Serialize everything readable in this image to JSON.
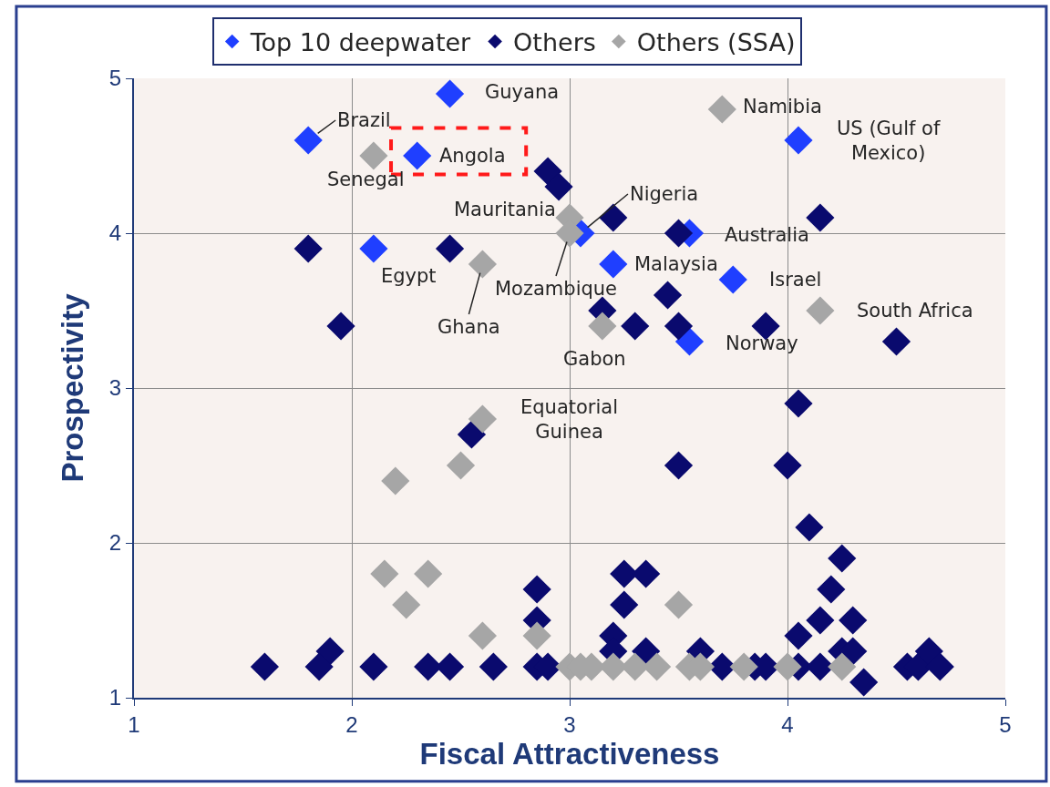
{
  "chart_data": {
    "type": "scatter",
    "xlabel": "Fiscal Attractiveness",
    "ylabel": "Prospectivity",
    "xlim": [
      1,
      5
    ],
    "ylim": [
      1,
      5
    ],
    "xticks": [
      1,
      2,
      3,
      4,
      5
    ],
    "yticks": [
      1,
      2,
      3,
      4,
      5
    ],
    "grid": true,
    "legend": "top",
    "marker": "diamond",
    "series": [
      {
        "name": "Top 10 deepwater",
        "color": "#1f3fff",
        "x": [
          2.45,
          1.8,
          2.3,
          2.1,
          4.05,
          3.05,
          3.55,
          3.2,
          3.75,
          3.55
        ],
        "values": [
          4.9,
          4.6,
          4.5,
          3.9,
          4.6,
          4.0,
          4.0,
          3.8,
          3.7,
          3.3
        ]
      },
      {
        "name": "Others",
        "color": "#0a0a6e",
        "x": [
          2.9,
          2.95,
          1.8,
          2.45,
          1.95,
          3.2,
          3.5,
          4.15,
          3.45,
          3.15,
          3.3,
          3.5,
          3.9,
          4.5,
          4.05,
          2.55,
          3.5,
          4.0,
          4.1,
          4.25,
          4.2,
          4.15,
          4.3,
          4.05,
          4.25,
          4.3,
          4.35,
          3.25,
          3.35,
          3.25,
          3.2,
          3.2,
          3.35,
          3.6,
          2.85,
          2.85,
          1.9,
          1.6,
          1.85,
          2.1,
          2.35,
          2.45,
          2.65,
          2.85,
          2.9,
          3.7,
          3.85,
          3.9,
          4.05,
          4.15,
          4.55,
          4.6,
          4.65,
          4.7
        ],
        "values": [
          4.4,
          4.3,
          3.9,
          3.9,
          3.4,
          4.1,
          4.0,
          4.1,
          3.6,
          3.5,
          3.4,
          3.4,
          3.4,
          3.3,
          2.9,
          2.7,
          2.5,
          2.5,
          2.1,
          1.9,
          1.7,
          1.5,
          1.5,
          1.4,
          1.3,
          1.3,
          1.1,
          1.8,
          1.8,
          1.6,
          1.4,
          1.3,
          1.3,
          1.3,
          1.7,
          1.5,
          1.3,
          1.2,
          1.2,
          1.2,
          1.2,
          1.2,
          1.2,
          1.2,
          1.2,
          1.2,
          1.2,
          1.2,
          1.2,
          1.2,
          1.2,
          1.2,
          1.3,
          1.2
        ]
      },
      {
        "name": "Others (SSA)",
        "color": "#a6a6a6",
        "x": [
          3.7,
          2.1,
          3.0,
          3.0,
          2.6,
          3.15,
          4.15,
          2.6,
          2.2,
          2.5,
          2.15,
          2.35,
          2.25,
          2.6,
          2.85,
          3.5,
          3.0,
          3.05,
          3.1,
          3.2,
          3.3,
          3.4,
          3.55,
          3.6,
          3.8,
          4.0,
          4.25
        ],
        "values": [
          4.8,
          4.5,
          4.1,
          4.0,
          3.8,
          3.4,
          3.5,
          2.8,
          2.4,
          2.5,
          1.8,
          1.8,
          1.6,
          1.4,
          1.4,
          1.6,
          1.2,
          1.2,
          1.2,
          1.2,
          1.2,
          1.2,
          1.2,
          1.2,
          1.2,
          1.2,
          1.2
        ]
      }
    ],
    "annotations": [
      {
        "text": "Guyana",
        "x": 2.45,
        "y": 4.9
      },
      {
        "text": "Brazil",
        "x": 1.8,
        "y": 4.6
      },
      {
        "text": "Angola",
        "x": 2.3,
        "y": 4.5
      },
      {
        "text": "Egypt",
        "x": 2.1,
        "y": 3.9
      },
      {
        "text": "US (Gulf of Mexico)",
        "x": 4.05,
        "y": 4.6
      },
      {
        "text": "Nigeria",
        "x": 3.05,
        "y": 4.0
      },
      {
        "text": "Australia",
        "x": 3.55,
        "y": 4.0
      },
      {
        "text": "Malaysia",
        "x": 3.2,
        "y": 3.8
      },
      {
        "text": "Israel",
        "x": 3.75,
        "y": 3.7
      },
      {
        "text": "Norway",
        "x": 3.55,
        "y": 3.3
      },
      {
        "text": "Namibia",
        "x": 3.7,
        "y": 4.8
      },
      {
        "text": "Senegal",
        "x": 2.1,
        "y": 4.5
      },
      {
        "text": "Mauritania",
        "x": 3.0,
        "y": 4.1
      },
      {
        "text": "Mozambique",
        "x": 3.0,
        "y": 4.0
      },
      {
        "text": "Ghana",
        "x": 2.6,
        "y": 3.8
      },
      {
        "text": "Gabon",
        "x": 3.15,
        "y": 3.4
      },
      {
        "text": "South Africa",
        "x": 4.15,
        "y": 3.5
      },
      {
        "text": "Equatorial Guinea",
        "x": 2.6,
        "y": 2.8
      }
    ]
  }
}
